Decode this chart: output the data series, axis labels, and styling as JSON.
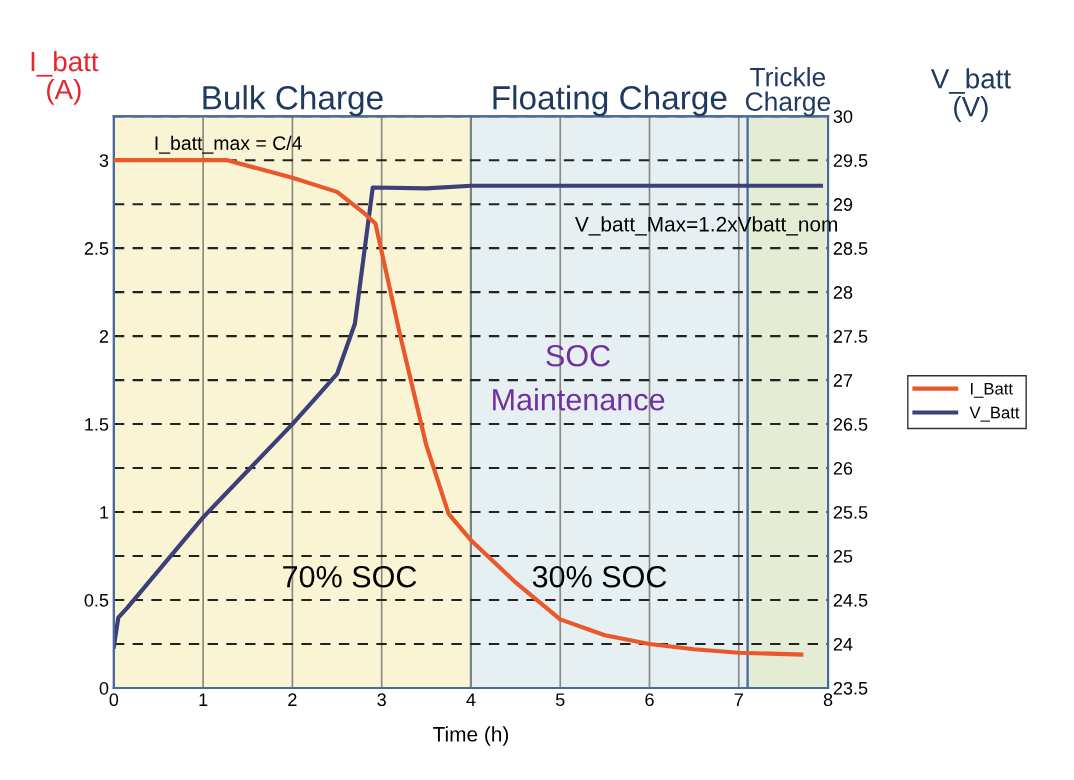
{
  "chart_data": {
    "type": "line",
    "xlabel": "Time (h)",
    "ylabel": "I_batt\n(A)",
    "y2label": "V_batt\n(V)",
    "xlim": [
      0,
      8
    ],
    "xticks": [
      0,
      1,
      2,
      3,
      4,
      5,
      6,
      7,
      8
    ],
    "ylim": [
      0,
      3.25
    ],
    "yticks": [
      0,
      0.5,
      1,
      1.5,
      2,
      2.5,
      3
    ],
    "y2lim": [
      23.5,
      30
    ],
    "y2ticks": [
      23.5,
      24,
      24.5,
      25,
      25.5,
      26,
      26.5,
      27,
      27.5,
      28,
      28.5,
      29,
      29.5,
      30
    ],
    "grid": true,
    "legend": "right",
    "marker": "none",
    "line_style": "solid",
    "series": [
      {
        "name": "I_Batt",
        "color": "#e8582a",
        "x": [
          0,
          0.5,
          1,
          1.27,
          2,
          2.5,
          2.8,
          2.93,
          3,
          3.2,
          3.5,
          3.75,
          4,
          4.5,
          5,
          5.5,
          6,
          6.5,
          7,
          7.7
        ],
        "values": [
          3.0,
          3.0,
          3.0,
          3.0,
          2.9,
          2.82,
          2.7,
          2.64,
          2.48,
          2.02,
          1.38,
          0.99,
          0.84,
          0.6,
          0.39,
          0.3,
          0.25,
          0.22,
          0.2,
          0.19
        ]
      },
      {
        "name": "V_Batt",
        "color": "#3c3f78",
        "axis": "y2",
        "x": [
          0,
          0.05,
          0.15,
          1,
          1.5,
          2,
          2.3,
          2.5,
          2.7,
          2.9,
          3.5,
          4,
          5,
          6,
          7,
          7.92
        ],
        "values": [
          23.97,
          24.3,
          24.41,
          25.44,
          25.97,
          26.5,
          26.84,
          27.07,
          27.64,
          29.19,
          29.18,
          29.21,
          29.21,
          29.21,
          29.21,
          29.21
        ]
      }
    ],
    "bands": [
      {
        "axis": "x",
        "from": 0,
        "to": 4,
        "label": "Bulk Charge",
        "color": "#f8f4d4"
      },
      {
        "axis": "x",
        "from": 4,
        "to": 7.1,
        "label": "Floating Charge",
        "color": "#e6eff2"
      },
      {
        "axis": "x",
        "from": 7.1,
        "to": 8,
        "label": "Trickle\nCharge",
        "color": "#e4ecd4"
      }
    ],
    "annotations": [
      "I_batt_max = C/4",
      "V_batt_Max=1.2xVbatt_nom",
      "SOC\nMaintenance",
      "70% SOC",
      "30% SOC"
    ]
  }
}
